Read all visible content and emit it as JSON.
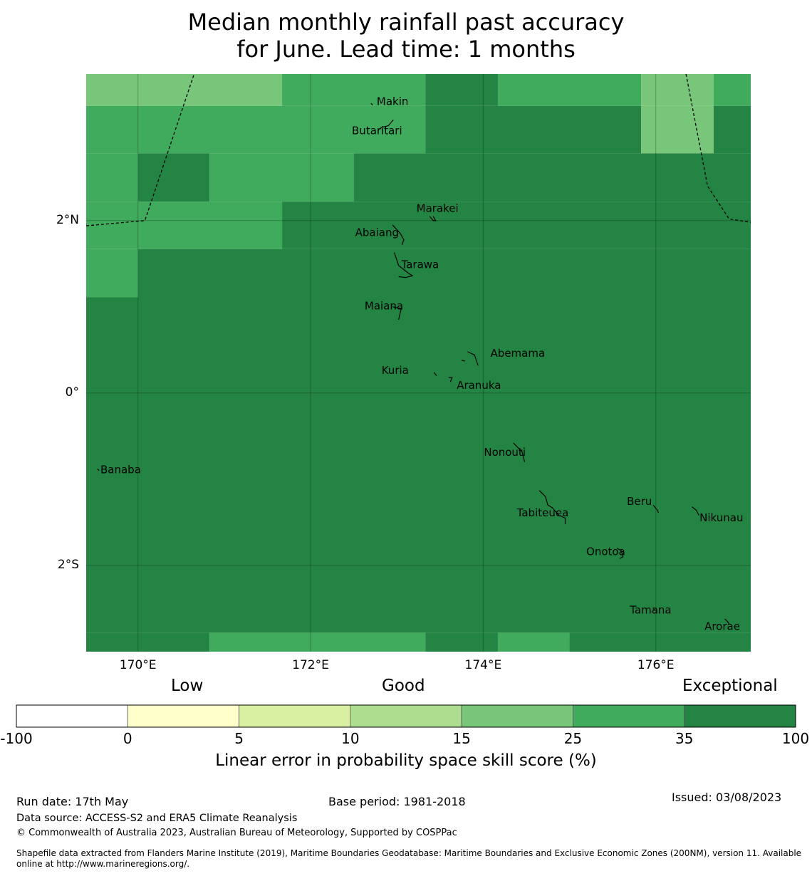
{
  "title": {
    "line1": "Median monthly rainfall past accuracy",
    "line2": "for June. Lead time: 1 months"
  },
  "map": {
    "lon_range": [
      169.4,
      177.1
    ],
    "lat_range": [
      -3.0,
      3.7
    ],
    "lat_ticks": [
      {
        "value": 2,
        "label": "2°N"
      },
      {
        "value": 0,
        "label": "0°"
      },
      {
        "value": -2,
        "label": "2°S"
      }
    ],
    "lon_ticks": [
      {
        "value": 170,
        "label": "170°E"
      },
      {
        "value": 172,
        "label": "172°E"
      },
      {
        "value": 174,
        "label": "174°E"
      },
      {
        "value": 176,
        "label": "176°E"
      }
    ],
    "grid": true,
    "places": [
      {
        "name": "Makin",
        "lon": 172.95,
        "lat": 3.34
      },
      {
        "name": "Butaritari",
        "lon": 172.77,
        "lat": 3.0
      },
      {
        "name": "Marakei",
        "lon": 173.47,
        "lat": 2.1
      },
      {
        "name": "Abaiang",
        "lon": 172.77,
        "lat": 1.82
      },
      {
        "name": "Tarawa",
        "lon": 173.27,
        "lat": 1.45
      },
      {
        "name": "Maiana",
        "lon": 172.85,
        "lat": 0.97
      },
      {
        "name": "Abemama",
        "lon": 174.4,
        "lat": 0.42
      },
      {
        "name": "Kuria",
        "lon": 172.98,
        "lat": 0.22
      },
      {
        "name": "Aranuka",
        "lon": 173.95,
        "lat": 0.05
      },
      {
        "name": "Nonouti",
        "lon": 174.25,
        "lat": -0.73
      },
      {
        "name": "Banaba",
        "lon": 169.8,
        "lat": -0.93
      },
      {
        "name": "Tabiteuea",
        "lon": 174.69,
        "lat": -1.43
      },
      {
        "name": "Beru",
        "lon": 175.81,
        "lat": -1.3
      },
      {
        "name": "Nikunau",
        "lon": 176.76,
        "lat": -1.49
      },
      {
        "name": "Onotoa",
        "lon": 175.42,
        "lat": -1.88
      },
      {
        "name": "Tamana",
        "lon": 175.94,
        "lat": -2.56
      },
      {
        "name": "Arorae",
        "lon": 176.77,
        "lat": -2.75
      }
    ],
    "cells": [
      {
        "lon": [
          169.4,
          171.67
        ],
        "lat": [
          3.33,
          3.7
        ],
        "class": 4
      },
      {
        "lon": [
          171.67,
          173.33
        ],
        "lat": [
          3.33,
          3.7
        ],
        "class": 5
      },
      {
        "lon": [
          173.33,
          174.17
        ],
        "lat": [
          3.33,
          3.7
        ],
        "class": 6
      },
      {
        "lon": [
          174.17,
          175.83
        ],
        "lat": [
          3.33,
          3.7
        ],
        "class": 5
      },
      {
        "lon": [
          175.83,
          176.67
        ],
        "lat": [
          3.33,
          3.7
        ],
        "class": 4
      },
      {
        "lon": [
          176.67,
          177.1
        ],
        "lat": [
          3.33,
          3.7
        ],
        "class": 5
      },
      {
        "lon": [
          169.4,
          173.33
        ],
        "lat": [
          2.78,
          3.33
        ],
        "class": 5
      },
      {
        "lon": [
          173.33,
          175.83
        ],
        "lat": [
          2.78,
          3.33
        ],
        "class": 6
      },
      {
        "lon": [
          175.83,
          176.67
        ],
        "lat": [
          2.78,
          3.33
        ],
        "class": 4
      },
      {
        "lon": [
          176.67,
          177.1
        ],
        "lat": [
          2.78,
          3.33
        ],
        "class": 6
      },
      {
        "lon": [
          169.4,
          170.0
        ],
        "lat": [
          2.22,
          2.78
        ],
        "class": 5
      },
      {
        "lon": [
          170.0,
          170.83
        ],
        "lat": [
          2.22,
          2.78
        ],
        "class": 6
      },
      {
        "lon": [
          170.83,
          172.5
        ],
        "lat": [
          2.22,
          2.78
        ],
        "class": 5
      },
      {
        "lon": [
          172.5,
          177.1
        ],
        "lat": [
          2.22,
          2.78
        ],
        "class": 6
      },
      {
        "lon": [
          169.4,
          171.67
        ],
        "lat": [
          1.67,
          2.22
        ],
        "class": 5
      },
      {
        "lon": [
          171.67,
          177.1
        ],
        "lat": [
          1.67,
          2.22
        ],
        "class": 6
      },
      {
        "lon": [
          169.4,
          170.0
        ],
        "lat": [
          1.11,
          1.67
        ],
        "class": 5
      },
      {
        "lon": [
          170.0,
          177.1
        ],
        "lat": [
          1.11,
          1.67
        ],
        "class": 6
      },
      {
        "lon": [
          169.4,
          177.1
        ],
        "lat": [
          -2.78,
          1.11
        ],
        "class": 6
      },
      {
        "lon": [
          169.4,
          170.83
        ],
        "lat": [
          -3.0,
          -2.78
        ],
        "class": 6
      },
      {
        "lon": [
          170.83,
          173.33
        ],
        "lat": [
          -3.0,
          -2.78
        ],
        "class": 5
      },
      {
        "lon": [
          173.33,
          174.17
        ],
        "lat": [
          -3.0,
          -2.78
        ],
        "class": 6
      },
      {
        "lon": [
          174.17,
          175.0
        ],
        "lat": [
          -3.0,
          -2.78
        ],
        "class": 5
      },
      {
        "lon": [
          175.0,
          177.1
        ],
        "lat": [
          -3.0,
          -2.78
        ],
        "class": 6
      }
    ],
    "boundaries": [
      [
        [
          169.4,
          1.94
        ],
        [
          170.08,
          2.0
        ],
        [
          170.65,
          3.7
        ]
      ],
      [
        [
          176.35,
          3.7
        ],
        [
          176.6,
          2.4
        ],
        [
          176.85,
          2.02
        ],
        [
          177.1,
          1.98
        ]
      ]
    ],
    "islands": [
      [
        [
          172.7,
          3.36
        ],
        [
          172.72,
          3.34
        ]
      ],
      [
        [
          172.78,
          3.05
        ],
        [
          172.82,
          3.08
        ],
        [
          172.9,
          3.1
        ],
        [
          172.96,
          3.17
        ]
      ],
      [
        [
          173.38,
          2.05
        ],
        [
          173.42,
          2.0
        ],
        [
          173.45,
          2.0
        ],
        [
          173.42,
          2.05
        ]
      ],
      [
        [
          172.95,
          1.95
        ],
        [
          173.04,
          1.85
        ],
        [
          173.08,
          1.78
        ],
        [
          173.06,
          1.72
        ]
      ],
      [
        [
          172.97,
          1.63
        ],
        [
          173.02,
          1.48
        ],
        [
          173.12,
          1.4
        ],
        [
          173.18,
          1.36
        ],
        [
          173.1,
          1.34
        ],
        [
          173.02,
          1.35
        ]
      ],
      [
        [
          172.95,
          1.0
        ],
        [
          173.05,
          0.98
        ],
        [
          173.02,
          0.85
        ]
      ],
      [
        [
          173.82,
          0.48
        ],
        [
          173.9,
          0.44
        ],
        [
          173.94,
          0.32
        ]
      ],
      [
        [
          173.75,
          0.38
        ],
        [
          173.79,
          0.37
        ]
      ],
      [
        [
          173.43,
          0.24
        ],
        [
          173.46,
          0.2
        ]
      ],
      [
        [
          173.6,
          0.18
        ],
        [
          173.64,
          0.18
        ],
        [
          173.62,
          0.13
        ]
      ],
      [
        [
          174.35,
          -0.58
        ],
        [
          174.45,
          -0.68
        ],
        [
          174.48,
          -0.8
        ]
      ],
      [
        [
          174.65,
          -1.13
        ],
        [
          174.72,
          -1.2
        ],
        [
          174.75,
          -1.3
        ],
        [
          174.8,
          -1.33
        ],
        [
          174.88,
          -1.42
        ],
        [
          174.95,
          -1.45
        ],
        [
          174.95,
          -1.52
        ]
      ],
      [
        [
          175.97,
          -1.3
        ],
        [
          176.02,
          -1.36
        ],
        [
          176.03,
          -1.39
        ]
      ],
      [
        [
          176.42,
          -1.32
        ],
        [
          176.47,
          -1.36
        ],
        [
          176.5,
          -1.42
        ]
      ],
      [
        [
          175.55,
          -1.8
        ],
        [
          175.6,
          -1.83
        ],
        [
          175.62,
          -1.9
        ],
        [
          175.58,
          -1.92
        ]
      ],
      [
        [
          175.97,
          -2.5
        ],
        [
          175.99,
          -2.52
        ]
      ],
      [
        [
          176.8,
          -2.62
        ],
        [
          176.83,
          -2.65
        ],
        [
          176.85,
          -2.68
        ]
      ],
      [
        [
          169.53,
          -0.88
        ],
        [
          169.55,
          -0.9
        ]
      ]
    ]
  },
  "colorbar": {
    "categories": [
      "Low",
      "Good",
      "Exceptional"
    ],
    "ticks": [
      "-100",
      "0",
      "5",
      "10",
      "15",
      "25",
      "35",
      "100"
    ],
    "colors": [
      "#ffffff",
      "#ffffcc",
      "#d9f0a3",
      "#addd8e",
      "#78c679",
      "#41ab5d",
      "#238443"
    ],
    "label": "Linear error in probability space skill score (%)"
  },
  "footer": {
    "run_date": "Run date: 17th May",
    "base_period": "Base period: 1981-2018",
    "issued": "Issued: 03/08/2023",
    "data_source": "Data source: ACCESS-S2 and ERA5 Climate Reanalysis",
    "copyright": "© Commonwealth of Australia 2023, Australian Bureau of Meteorology, Supported by COSPPac",
    "shapefile": "Shapefile data extracted from Flanders Marine Institute (2019), Maritime Boundaries Geodatabase: Maritime Boundaries and Exclusive Economic Zones (200NM), version 11. Available online at http://www.marineregions.org/."
  }
}
